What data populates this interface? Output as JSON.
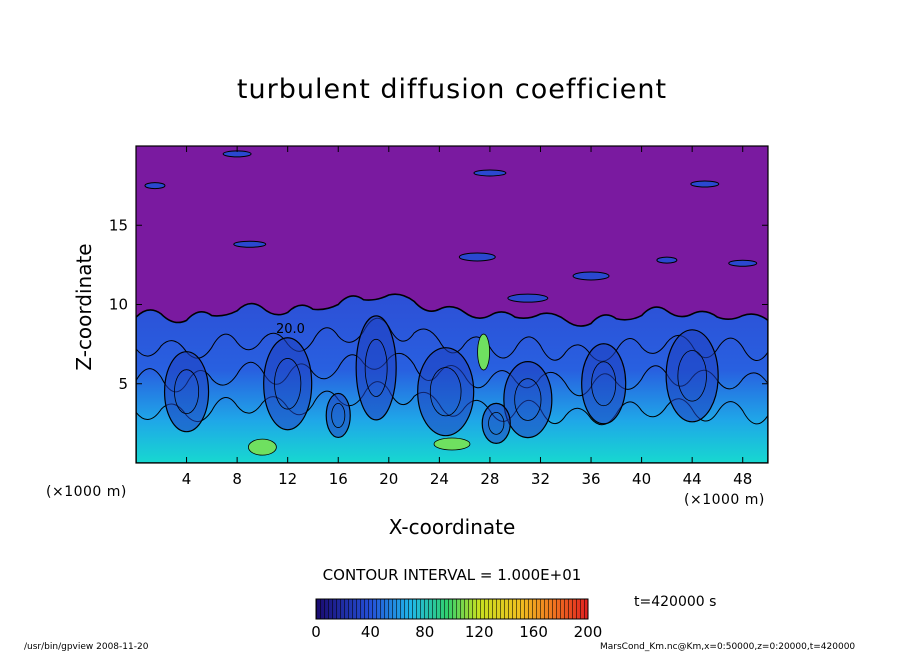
{
  "chart_data": {
    "type": "heatmap",
    "title": "turbulent diffusion coefficient",
    "xlabel": "X-coordinate",
    "ylabel": "Z-coordinate",
    "x_unit": "(×1000 m)",
    "y_unit": "(×1000 m)",
    "xlim": [
      0,
      50
    ],
    "ylim": [
      0,
      20
    ],
    "xticks": [
      4,
      8,
      12,
      16,
      20,
      24,
      28,
      32,
      36,
      40,
      44,
      48
    ],
    "yticks": [
      5,
      10,
      15
    ],
    "contour_interval_text": "CONTOUR INTERVAL = 1.000E+01",
    "contour_label": "20.0",
    "colorbar": {
      "min": 0,
      "max": 200,
      "ticks": [
        0,
        40,
        80,
        120,
        160,
        200
      ]
    },
    "time_text": "t=420000 s",
    "top_boundary_km": [
      9.2,
      9.4,
      9.0,
      9.3,
      9.6,
      9.8,
      9.5,
      9.7,
      10.0,
      10.3,
      10.6,
      10.2,
      9.7,
      9.5,
      9.3,
      9.2,
      9.4,
      9.0,
      8.8,
      9.1,
      9.3,
      9.6,
      9.4,
      9.2,
      9.3,
      9.0
    ]
  },
  "footer": {
    "left": "/usr/bin/gpview   2008-11-20",
    "right": "MarsCond_Km.nc@Km,x=0:50000,z=0:20000,t=420000"
  }
}
